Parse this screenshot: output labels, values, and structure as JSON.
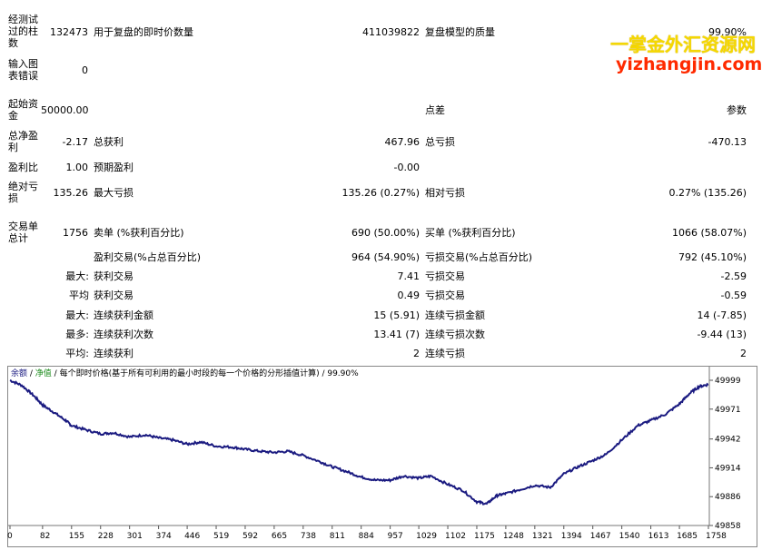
{
  "report": {
    "r1": {
      "l1": "经测试过的柱数",
      "v1": "132473",
      "l2": "用于复盘的即时价数量",
      "v2": "411039822",
      "l3": "复盘模型的质量",
      "v3": "99.90%"
    },
    "r2": {
      "l1": "输入图表错误",
      "v1": "0"
    },
    "r3": {
      "l1": "起始资金",
      "v1": "50000.00",
      "l3": "点差",
      "v3": "参数"
    },
    "r4": {
      "l1": "总净盈利",
      "v1": "-2.17",
      "l2": "总获利",
      "v2": "467.96",
      "l3": "总亏损",
      "v3": "-470.13"
    },
    "r5": {
      "l1": "盈利比",
      "v1": "1.00",
      "l2": "预期盈利",
      "v2": "-0.00"
    },
    "r6": {
      "l1": "绝对亏损",
      "v1": "135.26",
      "l2": "最大亏损",
      "v2": "135.26 (0.27%)",
      "l3": "相对亏损",
      "v3": "0.27% (135.26)"
    },
    "r7": {
      "l1": "交易单总计",
      "v1": "1756",
      "l2": "卖单 (%获利百分比)",
      "v2": "690 (50.00%)",
      "l3": "买单 (%获利百分比)",
      "v3": "1066 (58.07%)"
    },
    "r8": {
      "l2": "盈利交易(%占总百分比)",
      "v2": "964 (54.90%)",
      "l3": "亏损交易(%占总百分比)",
      "v3": "792 (45.10%)"
    },
    "r9": {
      "pre": "最大:",
      "l2": "获利交易",
      "v2": "7.41",
      "l3": "亏损交易",
      "v3": "-2.59"
    },
    "r10": {
      "pre": "平均",
      "l2": "获利交易",
      "v2": "0.49",
      "l3": "亏损交易",
      "v3": "-0.59"
    },
    "r11": {
      "pre": "最大:",
      "l2": "连续获利金额",
      "v2": "15 (5.91)",
      "l3": "连续亏损金额",
      "v3": "14 (-7.85)"
    },
    "r12": {
      "pre": "最多:",
      "l2": "连续获利次数",
      "v2": "13.41 (7)",
      "l3": "连续亏损次数",
      "v3": "-9.44 (13)"
    },
    "r13": {
      "pre": "平均:",
      "l2": "连续获利",
      "v2": "2",
      "l3": "连续亏损",
      "v3": "2"
    }
  },
  "watermark": {
    "line1": "一掌金外汇资源网",
    "line2": "yizhangjin.com"
  },
  "chart_data": {
    "type": "line",
    "header": {
      "balance": "余额",
      "sep1": " / ",
      "equity": "净值",
      "sep2": " / ",
      "model": "每个即时价格(基于所有可利用的最小时段的每一个价格的分形插值计算)",
      "sep3": " / ",
      "quality": "99.90%"
    },
    "x_ticks": [
      "0",
      "82",
      "155",
      "228",
      "301",
      "374",
      "446",
      "519",
      "592",
      "665",
      "738",
      "811",
      "884",
      "957",
      "1029",
      "1102",
      "1175",
      "1248",
      "1321",
      "1394",
      "1467",
      "1540",
      "1613",
      "1685",
      "1758"
    ],
    "y_ticks": [
      "49999",
      "49971",
      "49942",
      "49914",
      "49886",
      "49858"
    ],
    "ylim": [
      49858,
      49999
    ],
    "xlim": [
      0,
      1758
    ],
    "balance_color": "#1a1a80",
    "x": [
      0,
      30,
      60,
      82,
      110,
      140,
      155,
      190,
      228,
      260,
      301,
      340,
      374,
      410,
      446,
      480,
      519,
      560,
      592,
      630,
      665,
      700,
      738,
      780,
      811,
      850,
      884,
      920,
      957,
      990,
      1029,
      1060,
      1102,
      1140,
      1175,
      1200,
      1225,
      1248,
      1285,
      1321,
      1360,
      1394,
      1430,
      1467,
      1500,
      1540,
      1580,
      1613,
      1650,
      1685,
      1710,
      1735,
      1758
    ],
    "y": [
      49999,
      49994,
      49984,
      49975,
      49968,
      49960,
      49955,
      49951,
      49947,
      49948,
      49944,
      49946,
      49943,
      49941,
      49937,
      49939,
      49935,
      49934,
      49932,
      49930,
      49929,
      49930,
      49926,
      49920,
      49915,
      49910,
      49905,
      49902,
      49902,
      49906,
      49904,
      49906,
      49898,
      49892,
      49881,
      49879,
      49887,
      49889,
      49893,
      49897,
      49895,
      49908,
      49915,
      49921,
      49927,
      49941,
      49955,
      49960,
      49966,
      49976,
      49986,
      49993,
      49995
    ]
  }
}
